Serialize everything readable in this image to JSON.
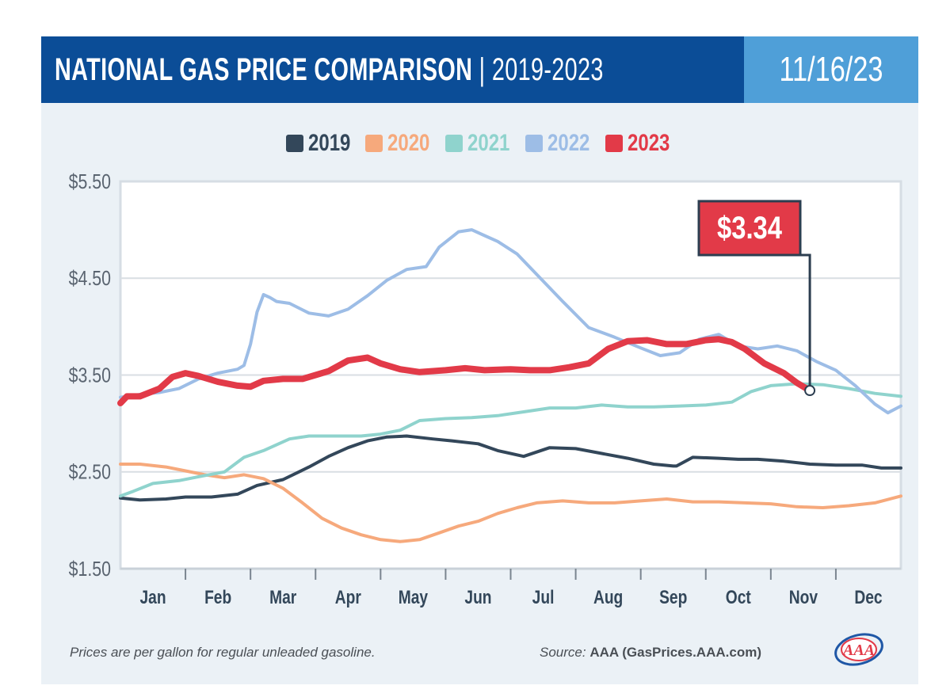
{
  "header": {
    "title_bold": "NATIONAL GAS PRICE COMPARISON",
    "separator": "|",
    "title_years": "2019-2023",
    "date": "11/16/23"
  },
  "footer": {
    "note": "Prices are per gallon for regular unleaded gasoline.",
    "source_label": "Source:",
    "source_value": "AAA (GasPrices.AAA.com)"
  },
  "logo": {
    "icon": "aaa-logo-icon",
    "text": "AAA"
  },
  "chart_data": {
    "type": "line",
    "title": "",
    "xlabel": "",
    "ylabel": "",
    "x_domain": [
      0,
      12
    ],
    "ylim": [
      1.5,
      5.5
    ],
    "yticks": [
      1.5,
      2.5,
      3.5,
      4.5,
      5.5
    ],
    "ytick_labels": [
      "$1.50",
      "$2.50",
      "$3.50",
      "$4.50",
      "$5.50"
    ],
    "month_labels": [
      "Jan",
      "Feb",
      "Mar",
      "Apr",
      "May",
      "Jun",
      "Jul",
      "Aug",
      "Sep",
      "Oct",
      "Nov",
      "Dec"
    ],
    "grid": true,
    "legend_position": "top-center",
    "callout": {
      "series": "2023",
      "label": "$3.34",
      "x": 10.6,
      "y": 3.34
    },
    "series": [
      {
        "name": "2019",
        "color": "#33475a",
        "x": [
          0.0,
          0.3,
          0.7,
          1.0,
          1.4,
          1.8,
          2.1,
          2.5,
          2.9,
          3.2,
          3.5,
          3.8,
          4.1,
          4.4,
          4.8,
          5.1,
          5.5,
          5.8,
          6.2,
          6.6,
          7.0,
          7.4,
          7.8,
          8.2,
          8.5,
          8.55,
          8.8,
          9.2,
          9.5,
          9.8,
          10.2,
          10.6,
          11.0,
          11.4,
          11.7,
          12.0
        ],
        "y": [
          2.23,
          2.21,
          2.22,
          2.24,
          2.24,
          2.27,
          2.36,
          2.42,
          2.55,
          2.66,
          2.75,
          2.82,
          2.86,
          2.87,
          2.84,
          2.82,
          2.79,
          2.72,
          2.66,
          2.75,
          2.74,
          2.69,
          2.64,
          2.58,
          2.56,
          2.56,
          2.65,
          2.64,
          2.63,
          2.63,
          2.61,
          2.58,
          2.57,
          2.57,
          2.54,
          2.54
        ]
      },
      {
        "name": "2020",
        "color": "#f6a97c",
        "x": [
          0.0,
          0.3,
          0.7,
          1.0,
          1.3,
          1.6,
          1.9,
          2.2,
          2.5,
          2.8,
          3.1,
          3.4,
          3.7,
          4.0,
          4.3,
          4.6,
          4.9,
          5.2,
          5.5,
          5.8,
          6.1,
          6.4,
          6.8,
          7.2,
          7.6,
          8.0,
          8.4,
          8.8,
          9.2,
          9.6,
          10.0,
          10.4,
          10.8,
          11.2,
          11.6,
          12.0
        ],
        "y": [
          2.58,
          2.58,
          2.55,
          2.51,
          2.47,
          2.44,
          2.47,
          2.43,
          2.33,
          2.18,
          2.02,
          1.92,
          1.85,
          1.8,
          1.78,
          1.8,
          1.87,
          1.94,
          1.99,
          2.07,
          2.13,
          2.18,
          2.2,
          2.18,
          2.18,
          2.2,
          2.22,
          2.19,
          2.19,
          2.18,
          2.17,
          2.14,
          2.13,
          2.15,
          2.18,
          2.25
        ]
      },
      {
        "name": "2021",
        "color": "#8fd3cd",
        "x": [
          0.0,
          0.2,
          0.5,
          0.9,
          1.2,
          1.6,
          1.9,
          2.2,
          2.6,
          2.9,
          3.3,
          3.7,
          4.0,
          4.3,
          4.6,
          5.0,
          5.4,
          5.8,
          6.2,
          6.6,
          7.0,
          7.4,
          7.8,
          8.2,
          8.6,
          9.0,
          9.4,
          9.7,
          10.0,
          10.4,
          10.8,
          11.2,
          11.6,
          12.0
        ],
        "y": [
          2.25,
          2.3,
          2.38,
          2.41,
          2.45,
          2.5,
          2.65,
          2.72,
          2.84,
          2.87,
          2.87,
          2.87,
          2.89,
          2.93,
          3.03,
          3.05,
          3.06,
          3.08,
          3.12,
          3.16,
          3.16,
          3.19,
          3.17,
          3.17,
          3.18,
          3.19,
          3.22,
          3.33,
          3.39,
          3.41,
          3.4,
          3.36,
          3.31,
          3.28
        ]
      },
      {
        "name": "2022",
        "color": "#9dbde6",
        "x": [
          0.0,
          0.3,
          0.6,
          0.9,
          1.2,
          1.5,
          1.8,
          1.9,
          2.0,
          2.1,
          2.2,
          2.3,
          2.4,
          2.6,
          2.9,
          3.2,
          3.5,
          3.8,
          4.1,
          4.4,
          4.7,
          4.9,
          5.2,
          5.4,
          5.6,
          5.8,
          6.1,
          6.4,
          6.8,
          7.2,
          7.6,
          8.0,
          8.3,
          8.6,
          8.9,
          9.2,
          9.5,
          9.8,
          10.1,
          10.4,
          10.7,
          11.0,
          11.3,
          11.6,
          11.8,
          12.0
        ],
        "y": [
          3.27,
          3.3,
          3.32,
          3.36,
          3.46,
          3.52,
          3.56,
          3.6,
          3.82,
          4.15,
          4.33,
          4.3,
          4.26,
          4.24,
          4.14,
          4.11,
          4.18,
          4.32,
          4.48,
          4.59,
          4.62,
          4.82,
          4.98,
          5.0,
          4.94,
          4.88,
          4.75,
          4.54,
          4.26,
          3.99,
          3.89,
          3.78,
          3.7,
          3.73,
          3.87,
          3.92,
          3.8,
          3.77,
          3.8,
          3.75,
          3.64,
          3.55,
          3.39,
          3.2,
          3.11,
          3.18
        ]
      },
      {
        "name": "2023",
        "color": "#e23a48",
        "x": [
          0.0,
          0.1,
          0.3,
          0.6,
          0.8,
          1.0,
          1.2,
          1.5,
          1.8,
          2.0,
          2.2,
          2.5,
          2.8,
          3.0,
          3.2,
          3.5,
          3.8,
          4.0,
          4.3,
          4.6,
          5.0,
          5.3,
          5.6,
          6.0,
          6.3,
          6.6,
          6.9,
          7.2,
          7.5,
          7.8,
          8.1,
          8.4,
          8.7,
          9.0,
          9.2,
          9.4,
          9.6,
          9.9,
          10.2,
          10.4,
          10.6
        ],
        "y": [
          3.21,
          3.28,
          3.28,
          3.36,
          3.48,
          3.52,
          3.49,
          3.43,
          3.39,
          3.38,
          3.44,
          3.46,
          3.46,
          3.5,
          3.54,
          3.65,
          3.68,
          3.62,
          3.56,
          3.53,
          3.55,
          3.57,
          3.55,
          3.56,
          3.55,
          3.55,
          3.58,
          3.62,
          3.77,
          3.85,
          3.86,
          3.82,
          3.82,
          3.86,
          3.87,
          3.84,
          3.77,
          3.62,
          3.52,
          3.42,
          3.34
        ]
      }
    ]
  }
}
